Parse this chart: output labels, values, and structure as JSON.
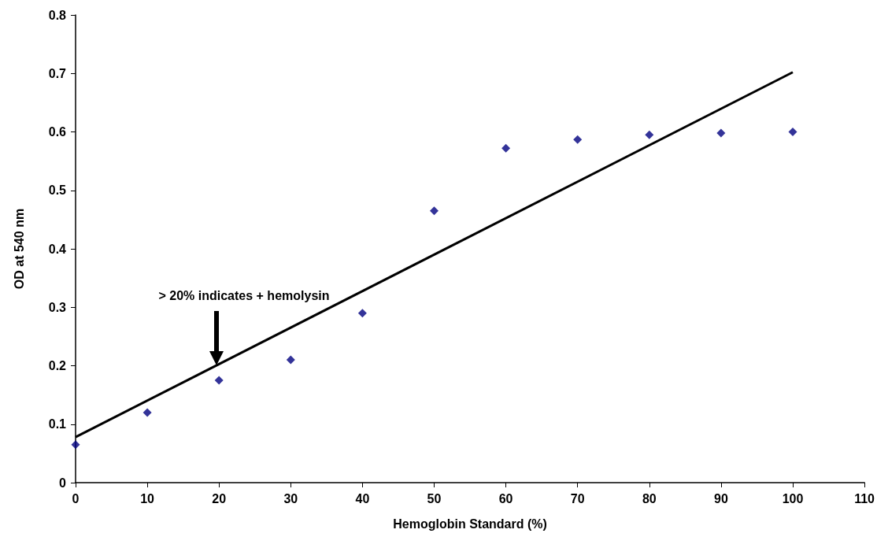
{
  "chart_data": {
    "type": "scatter",
    "xlabel": "Hemoglobin Standard (%)",
    "ylabel": "OD at 540 nm",
    "x": [
      0,
      10,
      20,
      30,
      40,
      50,
      60,
      70,
      80,
      90,
      100
    ],
    "series": [
      {
        "color": "#000080",
        "values": [
          0.065,
          0.12,
          0.175,
          0.21,
          0.29,
          0.465,
          0.572,
          0.587,
          0.595,
          0.598,
          0.6
        ]
      },
      {
        "type": "line",
        "color": "#000000",
        "x": [
          0,
          100
        ],
        "values": [
          0.078,
          0.702
        ],
        "marker": "none",
        "line_style": "solid"
      }
    ],
    "xlim": [
      0,
      110
    ],
    "xticks": [
      0,
      10,
      20,
      30,
      40,
      50,
      60,
      70,
      80,
      90,
      100,
      110
    ],
    "ylim": [
      0,
      0.8
    ],
    "yticks": [
      0,
      0.1,
      0.2,
      0.3,
      0.4,
      0.5,
      0.6,
      0.7,
      0.8
    ],
    "annotations": [
      "> 20% indicates + hemolysin"
    ],
    "marker": "diamond",
    "grid": false
  }
}
